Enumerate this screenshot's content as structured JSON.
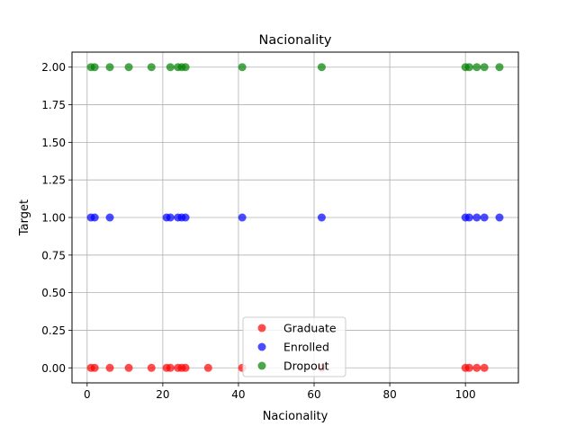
{
  "chart_data": {
    "type": "scatter",
    "title": "Nacionality",
    "xlabel": "Nacionality",
    "ylabel": "Target",
    "xlim": [
      -4,
      114
    ],
    "ylim": [
      -0.1,
      2.1
    ],
    "xticks": [
      0,
      20,
      40,
      60,
      80,
      100
    ],
    "xtick_labels": [
      "0",
      "20",
      "40",
      "60",
      "80",
      "100"
    ],
    "yticks": [
      0.0,
      0.25,
      0.5,
      0.75,
      1.0,
      1.25,
      1.5,
      1.75,
      2.0
    ],
    "ytick_labels": [
      "0.00",
      "0.25",
      "0.50",
      "0.75",
      "1.00",
      "1.25",
      "1.50",
      "1.75",
      "2.00"
    ],
    "grid": true,
    "legend_position": "bottom-center",
    "series": [
      {
        "name": "Graduate",
        "color": "#ff0000",
        "x": [
          1,
          2,
          6,
          11,
          17,
          21,
          22,
          24,
          25,
          26,
          32,
          41,
          62,
          100,
          101,
          103,
          105
        ],
        "y": [
          0,
          0,
          0,
          0,
          0,
          0,
          0,
          0,
          0,
          0,
          0,
          0,
          0,
          0,
          0,
          0,
          0
        ]
      },
      {
        "name": "Enrolled",
        "color": "#0000ff",
        "x": [
          1,
          2,
          6,
          21,
          22,
          24,
          25,
          26,
          41,
          62,
          100,
          101,
          103,
          105,
          109
        ],
        "y": [
          1,
          1,
          1,
          1,
          1,
          1,
          1,
          1,
          1,
          1,
          1,
          1,
          1,
          1,
          1
        ]
      },
      {
        "name": "Dropout",
        "color": "#008000",
        "x": [
          1,
          2,
          6,
          11,
          17,
          22,
          24,
          25,
          26,
          41,
          62,
          100,
          101,
          103,
          105,
          109
        ],
        "y": [
          2,
          2,
          2,
          2,
          2,
          2,
          2,
          2,
          2,
          2,
          2,
          2,
          2,
          2,
          2,
          2
        ]
      }
    ]
  }
}
